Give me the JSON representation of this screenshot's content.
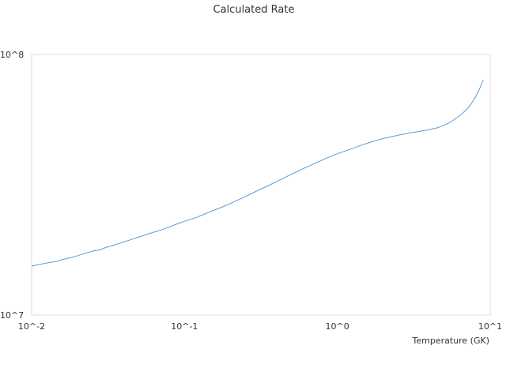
{
  "chart_data": {
    "type": "line",
    "title": "Calculated Rate",
    "xlabel": "Temperature (GK)",
    "ylabel": "",
    "x_scale": "log",
    "y_scale": "log",
    "xlim": [
      0.01,
      10
    ],
    "ylim": [
      10000000,
      100000000
    ],
    "x_ticks": [
      "10^-2",
      "10^-1",
      "10^0",
      "10^1"
    ],
    "y_ticks": [
      "10^7",
      "10^8"
    ],
    "grid": false,
    "legend": "none",
    "line_color": "#5b9bd5",
    "series": [
      {
        "x": [
          0.01,
          0.011,
          0.012,
          0.013,
          0.014,
          0.015,
          0.016,
          0.018,
          0.02,
          0.022,
          0.025,
          0.028,
          0.03,
          0.035,
          0.04,
          0.045,
          0.05,
          0.06,
          0.07,
          0.08,
          0.09,
          0.1,
          0.12,
          0.14,
          0.16,
          0.18,
          0.2,
          0.25,
          0.3,
          0.35,
          0.4,
          0.5,
          0.6,
          0.7,
          0.8,
          0.9,
          1.0,
          1.2,
          1.4,
          1.6,
          1.8,
          2.0,
          2.5,
          3.0,
          3.5,
          4.0,
          4.5,
          5.0,
          5.5,
          6.0,
          6.5,
          7.0,
          7.5,
          8.0,
          8.5,
          9.0
        ],
        "y": [
          15400000,
          15600000,
          15750000,
          15900000,
          16000000,
          16150000,
          16350000,
          16600000,
          16900000,
          17200000,
          17600000,
          17800000,
          18100000,
          18600000,
          19100000,
          19500000,
          19900000,
          20600000,
          21200000,
          21800000,
          22400000,
          22900000,
          23700000,
          24600000,
          25400000,
          26100000,
          26800000,
          28500000,
          30000000,
          31300000,
          32500000,
          34700000,
          36500000,
          38000000,
          39400000,
          40600000,
          41600000,
          43200000,
          44600000,
          45800000,
          46800000,
          47600000,
          49000000,
          50000000,
          50800000,
          51500000,
          52300000,
          53500000,
          55000000,
          57000000,
          59000000,
          61500000,
          64500000,
          68500000,
          73500000,
          80000000
        ]
      }
    ]
  }
}
